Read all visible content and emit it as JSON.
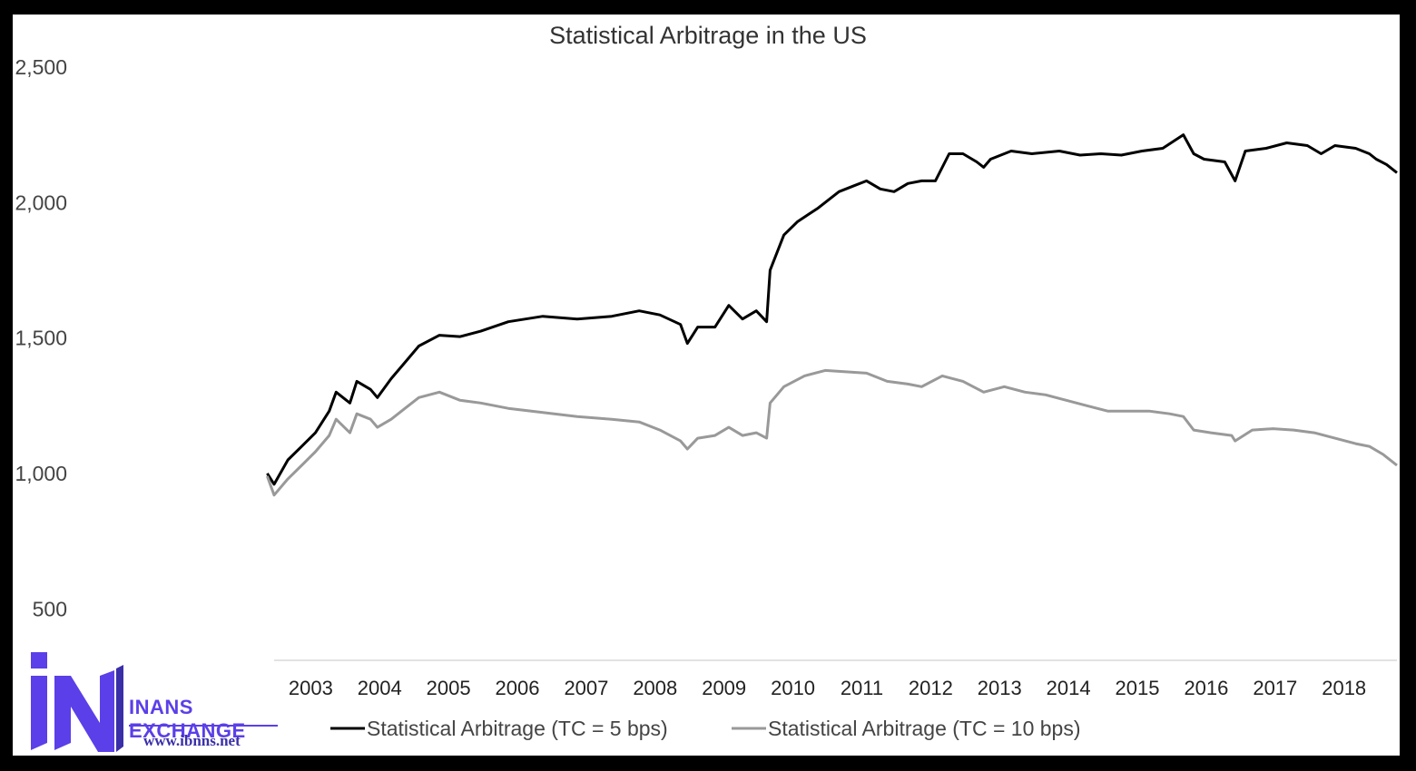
{
  "chart_data": {
    "type": "line",
    "title": "Statistical Arbitrage in the US",
    "xlabel": "",
    "ylabel": "",
    "x_range": [
      2002.6,
      2018.9
    ],
    "ylim": [
      310,
      2560
    ],
    "yticks": [
      500,
      1000,
      1500,
      2000,
      2500
    ],
    "ytick_labels": [
      "500",
      "1,000",
      "1,500",
      "2,000",
      "2,500"
    ],
    "xtick_labels": [
      "2003",
      "2004",
      "2005",
      "2006",
      "2007",
      "2008",
      "2009",
      "2010",
      "2011",
      "2012",
      "2013",
      "2014",
      "2015",
      "2016",
      "2017",
      "2018"
    ],
    "grid": false,
    "legend_position": "bottom",
    "series": [
      {
        "name": "Statistical Arbitrage (TC = 5 bps)",
        "color": "#000000",
        "points": [
          [
            2002.5,
            1000
          ],
          [
            2002.6,
            960
          ],
          [
            2002.8,
            1050
          ],
          [
            2003.0,
            1100
          ],
          [
            2003.2,
            1150
          ],
          [
            2003.4,
            1230
          ],
          [
            2003.5,
            1300
          ],
          [
            2003.7,
            1260
          ],
          [
            2003.8,
            1340
          ],
          [
            2004.0,
            1310
          ],
          [
            2004.1,
            1280
          ],
          [
            2004.3,
            1350
          ],
          [
            2004.5,
            1410
          ],
          [
            2004.7,
            1470
          ],
          [
            2005.0,
            1510
          ],
          [
            2005.3,
            1505
          ],
          [
            2005.6,
            1525
          ],
          [
            2006.0,
            1560
          ],
          [
            2006.5,
            1580
          ],
          [
            2007.0,
            1570
          ],
          [
            2007.5,
            1580
          ],
          [
            2007.9,
            1600
          ],
          [
            2008.2,
            1585
          ],
          [
            2008.5,
            1550
          ],
          [
            2008.6,
            1480
          ],
          [
            2008.75,
            1540
          ],
          [
            2009.0,
            1540
          ],
          [
            2009.2,
            1620
          ],
          [
            2009.4,
            1570
          ],
          [
            2009.6,
            1600
          ],
          [
            2009.75,
            1560
          ],
          [
            2009.8,
            1750
          ],
          [
            2010.0,
            1880
          ],
          [
            2010.2,
            1930
          ],
          [
            2010.5,
            1980
          ],
          [
            2010.8,
            2040
          ],
          [
            2011.0,
            2060
          ],
          [
            2011.2,
            2080
          ],
          [
            2011.4,
            2050
          ],
          [
            2011.6,
            2040
          ],
          [
            2011.8,
            2070
          ],
          [
            2012.0,
            2080
          ],
          [
            2012.2,
            2080
          ],
          [
            2012.4,
            2180
          ],
          [
            2012.6,
            2180
          ],
          [
            2012.8,
            2150
          ],
          [
            2012.9,
            2130
          ],
          [
            2013.0,
            2160
          ],
          [
            2013.3,
            2190
          ],
          [
            2013.6,
            2180
          ],
          [
            2014.0,
            2190
          ],
          [
            2014.3,
            2175
          ],
          [
            2014.6,
            2180
          ],
          [
            2014.9,
            2175
          ],
          [
            2015.2,
            2190
          ],
          [
            2015.5,
            2200
          ],
          [
            2015.8,
            2250
          ],
          [
            2015.95,
            2180
          ],
          [
            2016.1,
            2160
          ],
          [
            2016.4,
            2150
          ],
          [
            2016.55,
            2080
          ],
          [
            2016.7,
            2190
          ],
          [
            2017.0,
            2200
          ],
          [
            2017.3,
            2220
          ],
          [
            2017.6,
            2210
          ],
          [
            2017.8,
            2180
          ],
          [
            2018.0,
            2210
          ],
          [
            2018.3,
            2200
          ],
          [
            2018.5,
            2180
          ],
          [
            2018.6,
            2160
          ],
          [
            2018.75,
            2140
          ],
          [
            2018.9,
            2110
          ]
        ]
      },
      {
        "name": "Statistical Arbitrage (TC = 10 bps)",
        "color": "#999999",
        "points": [
          [
            2002.5,
            990
          ],
          [
            2002.6,
            920
          ],
          [
            2002.8,
            980
          ],
          [
            2003.0,
            1030
          ],
          [
            2003.2,
            1080
          ],
          [
            2003.4,
            1140
          ],
          [
            2003.5,
            1200
          ],
          [
            2003.7,
            1150
          ],
          [
            2003.8,
            1220
          ],
          [
            2004.0,
            1200
          ],
          [
            2004.1,
            1170
          ],
          [
            2004.3,
            1200
          ],
          [
            2004.5,
            1240
          ],
          [
            2004.7,
            1280
          ],
          [
            2005.0,
            1300
          ],
          [
            2005.3,
            1270
          ],
          [
            2005.6,
            1260
          ],
          [
            2006.0,
            1240
          ],
          [
            2006.5,
            1225
          ],
          [
            2007.0,
            1210
          ],
          [
            2007.5,
            1200
          ],
          [
            2007.9,
            1190
          ],
          [
            2008.2,
            1160
          ],
          [
            2008.5,
            1120
          ],
          [
            2008.6,
            1090
          ],
          [
            2008.75,
            1130
          ],
          [
            2009.0,
            1140
          ],
          [
            2009.2,
            1170
          ],
          [
            2009.4,
            1140
          ],
          [
            2009.6,
            1150
          ],
          [
            2009.75,
            1130
          ],
          [
            2009.8,
            1260
          ],
          [
            2010.0,
            1320
          ],
          [
            2010.3,
            1360
          ],
          [
            2010.6,
            1380
          ],
          [
            2010.9,
            1375
          ],
          [
            2011.2,
            1370
          ],
          [
            2011.5,
            1340
          ],
          [
            2011.8,
            1330
          ],
          [
            2012.0,
            1320
          ],
          [
            2012.3,
            1360
          ],
          [
            2012.6,
            1340
          ],
          [
            2012.9,
            1300
          ],
          [
            2013.2,
            1320
          ],
          [
            2013.5,
            1300
          ],
          [
            2013.8,
            1290
          ],
          [
            2014.1,
            1270
          ],
          [
            2014.4,
            1250
          ],
          [
            2014.7,
            1230
          ],
          [
            2015.0,
            1230
          ],
          [
            2015.3,
            1230
          ],
          [
            2015.6,
            1220
          ],
          [
            2015.8,
            1210
          ],
          [
            2015.95,
            1160
          ],
          [
            2016.2,
            1150
          ],
          [
            2016.5,
            1140
          ],
          [
            2016.55,
            1120
          ],
          [
            2016.8,
            1160
          ],
          [
            2017.1,
            1165
          ],
          [
            2017.4,
            1160
          ],
          [
            2017.7,
            1150
          ],
          [
            2018.0,
            1130
          ],
          [
            2018.3,
            1110
          ],
          [
            2018.5,
            1100
          ],
          [
            2018.7,
            1070
          ],
          [
            2018.9,
            1030
          ]
        ]
      }
    ]
  },
  "watermark": {
    "brand": "INANS EXCHANGE",
    "url": "www.ibnns.net",
    "color": "#5b3fe8"
  }
}
